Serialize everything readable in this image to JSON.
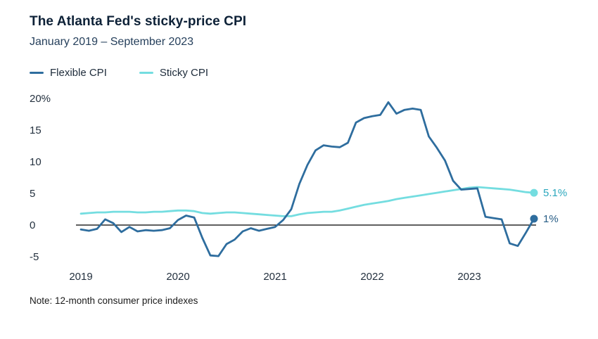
{
  "header": {
    "title": "The Atlanta Fed's sticky-price CPI",
    "subtitle": "January 2019 – September 2023"
  },
  "legend": [
    {
      "label": "Flexible CPI",
      "color": "#2e6d9e"
    },
    {
      "label": "Sticky CPI",
      "color": "#74dde0"
    }
  ],
  "note": "Note: 12-month consumer price indexes",
  "chart_data": {
    "type": "line",
    "x_unit": "month",
    "x_start": "2019-01",
    "x_end": "2023-09",
    "x_tick_labels": [
      "2019",
      "2020",
      "2021",
      "2022",
      "2023"
    ],
    "y_ticks": [
      20,
      15,
      10,
      5,
      0,
      -5
    ],
    "y_tick_labels": [
      "20%",
      "15",
      "10",
      "5",
      "0",
      "-5"
    ],
    "ylim": [
      -6.5,
      21.5
    ],
    "grid": false,
    "zero_line": true,
    "legend_position": "top-left",
    "series": [
      {
        "name": "Flexible CPI",
        "color": "#2e6d9e",
        "end_label": "1%",
        "end_label_color": "#275d86",
        "values": [
          -0.7,
          -0.9,
          -0.6,
          0.9,
          0.3,
          -1.1,
          -0.3,
          -1.0,
          -0.8,
          -0.9,
          -0.8,
          -0.5,
          0.8,
          1.5,
          1.2,
          -2.0,
          -4.8,
          -4.9,
          -3.0,
          -2.3,
          -1.0,
          -0.5,
          -0.9,
          -0.6,
          -0.3,
          0.8,
          2.5,
          6.5,
          9.5,
          11.8,
          12.6,
          12.4,
          12.3,
          13.0,
          16.2,
          16.9,
          17.2,
          17.4,
          19.4,
          17.6,
          18.2,
          18.4,
          18.2,
          14.0,
          12.2,
          10.2,
          7.0,
          5.6,
          5.7,
          5.8,
          1.3,
          1.1,
          0.9,
          -2.9,
          -3.3,
          -1.2,
          1.0
        ]
      },
      {
        "name": "Sticky CPI",
        "color": "#74dde0",
        "end_label": "5.1%",
        "end_label_color": "#2ba7bd",
        "values": [
          1.8,
          1.9,
          2.0,
          2.0,
          2.1,
          2.1,
          2.1,
          2.0,
          2.0,
          2.1,
          2.1,
          2.2,
          2.3,
          2.3,
          2.2,
          1.9,
          1.8,
          1.9,
          2.0,
          2.0,
          1.9,
          1.8,
          1.7,
          1.6,
          1.5,
          1.4,
          1.4,
          1.7,
          1.9,
          2.0,
          2.1,
          2.1,
          2.3,
          2.6,
          2.9,
          3.2,
          3.4,
          3.6,
          3.8,
          4.1,
          4.3,
          4.5,
          4.7,
          4.9,
          5.1,
          5.3,
          5.5,
          5.7,
          5.9,
          6.0,
          5.9,
          5.8,
          5.7,
          5.6,
          5.4,
          5.2,
          5.1
        ]
      }
    ]
  }
}
